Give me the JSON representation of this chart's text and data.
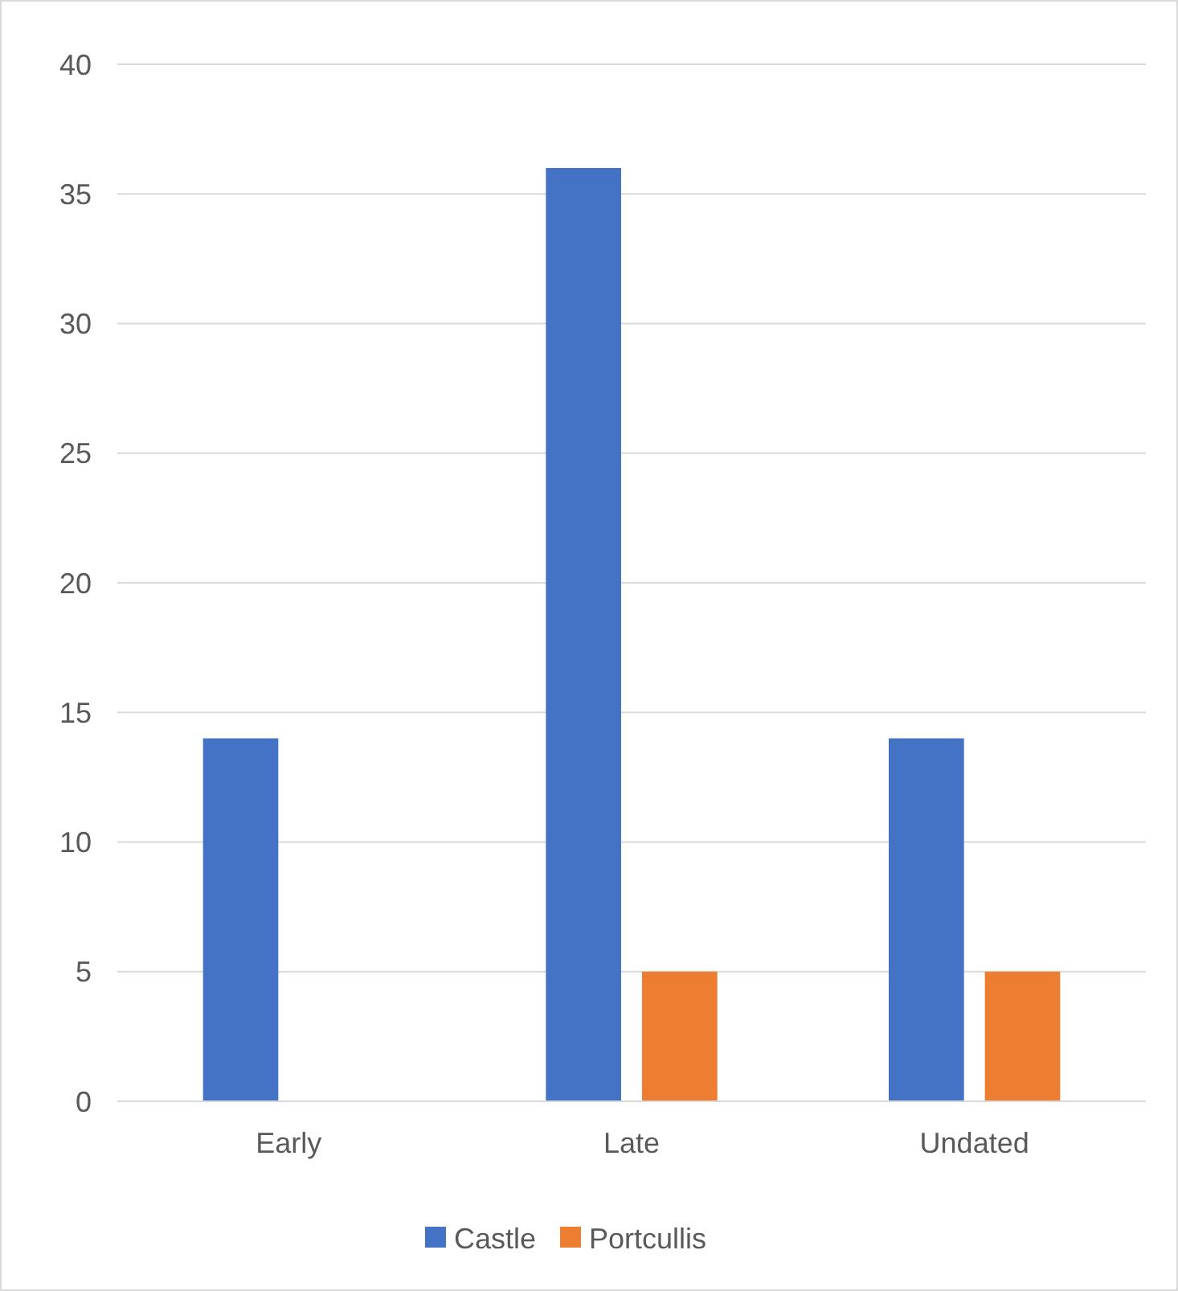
{
  "chart_data": {
    "type": "bar",
    "categories": [
      "Early",
      "Late",
      "Undated"
    ],
    "series": [
      {
        "name": "Castle",
        "color": "#4472c4",
        "values": [
          14,
          36,
          14
        ]
      },
      {
        "name": "Portcullis",
        "color": "#ed7d31",
        "values": [
          0,
          5,
          5
        ]
      }
    ],
    "ylim": [
      0,
      40
    ],
    "yticks": [
      0,
      5,
      10,
      15,
      20,
      25,
      30,
      35,
      40
    ],
    "grid": "y",
    "legend": "bottom"
  }
}
